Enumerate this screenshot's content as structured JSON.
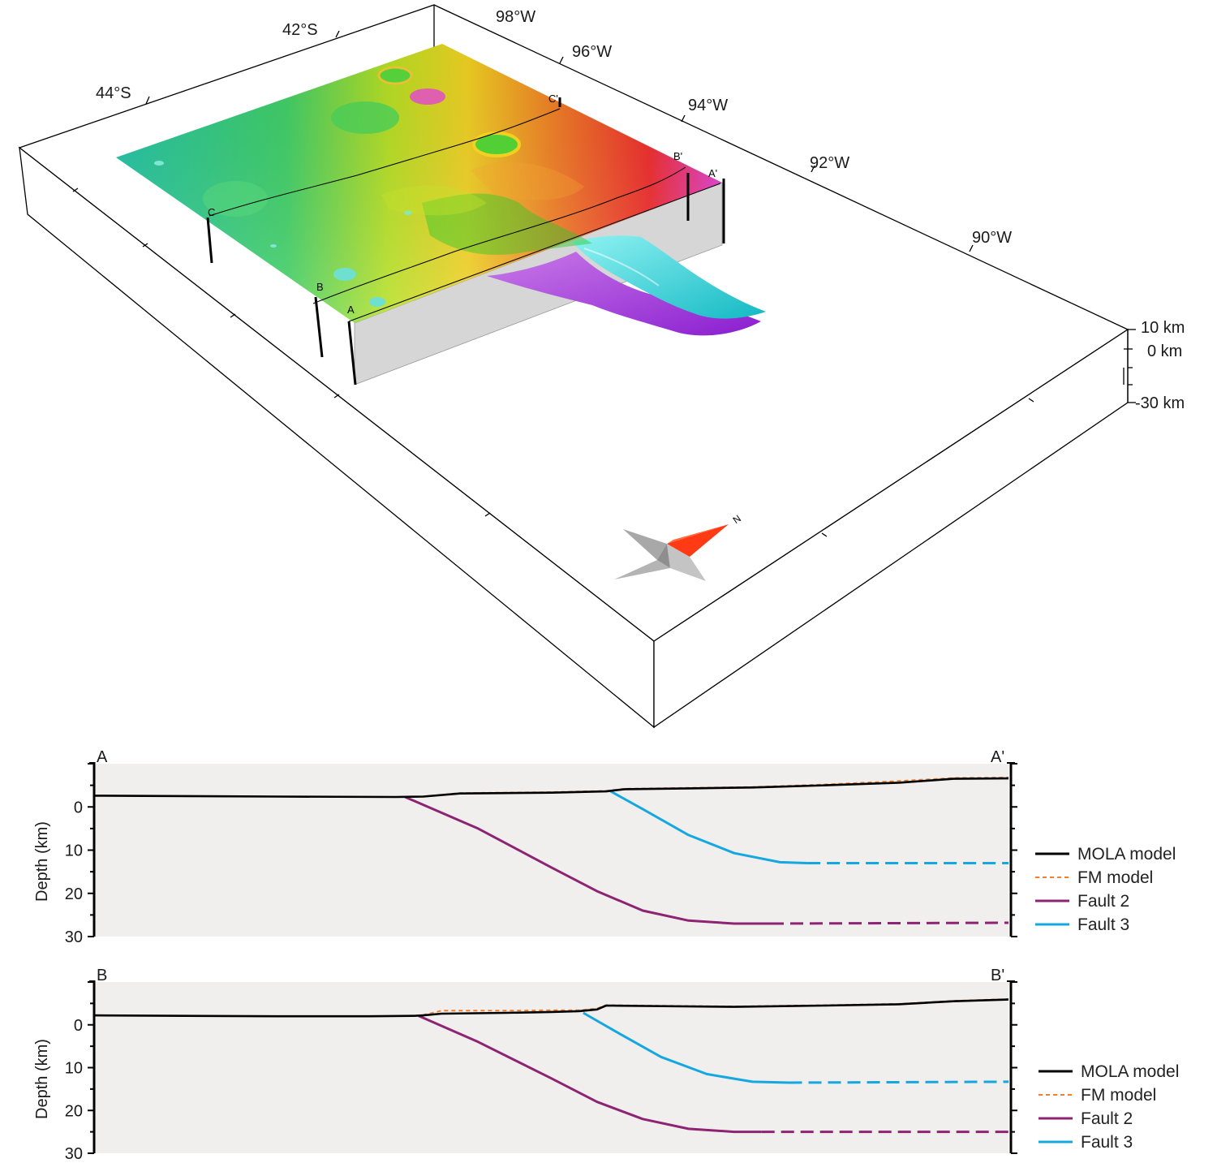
{
  "block_diagram": {
    "longitude_labels": [
      "98°W",
      "96°W",
      "94°W",
      "92°W",
      "90°W"
    ],
    "latitude_labels": [
      "42°S",
      "44°S"
    ],
    "elevation_labels": [
      "10 km",
      "0 km",
      "-30 km"
    ],
    "profile_markers": [
      "A",
      "A'",
      "B",
      "B'",
      "C",
      "C'"
    ],
    "north_arrow": "N",
    "surface_colormap": [
      "#20c0a0",
      "#40d060",
      "#b8e020",
      "#f0d020",
      "#f08020",
      "#f02020",
      "#e040d0"
    ],
    "fault_colors": {
      "fault_2_surface": "#a030e0",
      "fault_3_surface": "#20d8d8"
    }
  },
  "chart_data": [
    {
      "type": "line",
      "profile_start": "A",
      "profile_end": "A'",
      "ylabel": "Depth (km)",
      "yticks": [
        0,
        10,
        20,
        30
      ],
      "ylim": [
        30,
        -10
      ],
      "inverted_y": true,
      "x_units": "fraction_of_profile",
      "series": [
        {
          "name": "MOLA model",
          "color": "#000000",
          "style": "solid",
          "x": [
            0,
            0.1,
            0.2,
            0.33,
            0.36,
            0.4,
            0.45,
            0.5,
            0.56,
            0.58,
            0.65,
            0.72,
            0.8,
            0.88,
            0.94,
            1.0
          ],
          "y": [
            -2.6,
            -2.5,
            -2.4,
            -2.3,
            -2.4,
            -3.1,
            -3.2,
            -3.3,
            -3.6,
            -4.1,
            -4.3,
            -4.5,
            -5.0,
            -5.6,
            -6.5,
            -6.6
          ]
        },
        {
          "name": "FM model",
          "color": "#f08030",
          "style": "dashed",
          "x": [
            0,
            0.1,
            0.2,
            0.33,
            0.36,
            0.4,
            0.45,
            0.5,
            0.56,
            0.58,
            0.65,
            0.72,
            0.8,
            0.88,
            0.94,
            1.0
          ],
          "y": [
            -2.6,
            -2.5,
            -2.4,
            -2.3,
            -2.4,
            -3.2,
            -3.3,
            -3.4,
            -3.7,
            -4.2,
            -4.4,
            -4.6,
            -5.2,
            -6.0,
            -6.7,
            -6.8
          ]
        },
        {
          "name": "Fault 2",
          "color": "#8c2473",
          "style": "solid",
          "x": [
            0.34,
            0.42,
            0.5,
            0.55,
            0.6,
            0.65,
            0.7,
            0.74
          ],
          "y": [
            -2.3,
            5.0,
            14.0,
            19.5,
            24.0,
            26.3,
            27.0,
            27.0
          ],
          "extension": {
            "x": [
              0.74,
              1.0
            ],
            "y": [
              27.0,
              26.8
            ],
            "style": "dashed"
          }
        },
        {
          "name": "Fault 3",
          "color": "#15a8e0",
          "style": "solid",
          "x": [
            0.565,
            0.6,
            0.65,
            0.7,
            0.75,
            0.78
          ],
          "y": [
            -3.6,
            0.5,
            6.5,
            10.7,
            12.8,
            13.0
          ],
          "extension": {
            "x": [
              0.78,
              1.0
            ],
            "y": [
              13.0,
              13.0
            ],
            "style": "dashed"
          }
        }
      ],
      "legend": {
        "position": "right",
        "entries": [
          "MOLA model",
          "FM model",
          "Fault 2",
          "Fault 3"
        ]
      }
    },
    {
      "type": "line",
      "profile_start": "B",
      "profile_end": "B'",
      "ylabel": "Depth (km)",
      "yticks": [
        0,
        10,
        20,
        30
      ],
      "ylim": [
        30,
        -10
      ],
      "inverted_y": true,
      "x_units": "fraction_of_profile",
      "series": [
        {
          "name": "MOLA model",
          "color": "#000000",
          "style": "solid",
          "x": [
            0,
            0.1,
            0.2,
            0.3,
            0.35,
            0.36,
            0.38,
            0.45,
            0.5,
            0.53,
            0.55,
            0.56,
            0.6,
            0.7,
            0.8,
            0.88,
            0.94,
            1.0
          ],
          "y": [
            -2.2,
            -2.1,
            -2.0,
            -2.0,
            -2.1,
            -2.2,
            -2.6,
            -2.8,
            -3.0,
            -3.2,
            -3.6,
            -4.5,
            -4.4,
            -4.2,
            -4.5,
            -4.8,
            -5.5,
            -5.9
          ]
        },
        {
          "name": "FM model",
          "color": "#f08030",
          "style": "dashed",
          "x": [
            0,
            0.1,
            0.2,
            0.3,
            0.35,
            0.36,
            0.38,
            0.45,
            0.5,
            0.53,
            0.55,
            0.56,
            0.6,
            0.7,
            0.8,
            0.88,
            0.94,
            1.0
          ],
          "y": [
            -2.2,
            -2.1,
            -2.0,
            -2.0,
            -2.1,
            -2.3,
            -3.3,
            -3.3,
            -3.4,
            -3.4,
            -3.8,
            -4.6,
            -4.5,
            -4.3,
            -4.6,
            -4.9,
            -5.6,
            -6.0
          ]
        },
        {
          "name": "Fault 2",
          "color": "#8c2473",
          "style": "solid",
          "x": [
            0.355,
            0.42,
            0.5,
            0.55,
            0.6,
            0.65,
            0.7,
            0.73
          ],
          "y": [
            -2.1,
            4.0,
            12.5,
            18.0,
            22.0,
            24.3,
            25.0,
            25.0
          ],
          "extension": {
            "x": [
              0.73,
              1.0
            ],
            "y": [
              25.0,
              25.0
            ],
            "style": "dashed"
          }
        },
        {
          "name": "Fault 3",
          "color": "#15a8e0",
          "style": "solid",
          "x": [
            0.535,
            0.57,
            0.62,
            0.67,
            0.72,
            0.76
          ],
          "y": [
            -2.8,
            1.5,
            7.5,
            11.5,
            13.3,
            13.5
          ],
          "extension": {
            "x": [
              0.76,
              1.0
            ],
            "y": [
              13.5,
              13.3
            ],
            "style": "dashed"
          }
        }
      ],
      "legend": {
        "position": "right",
        "entries": [
          "MOLA model",
          "FM model",
          "Fault 2",
          "Fault 3"
        ]
      }
    }
  ]
}
